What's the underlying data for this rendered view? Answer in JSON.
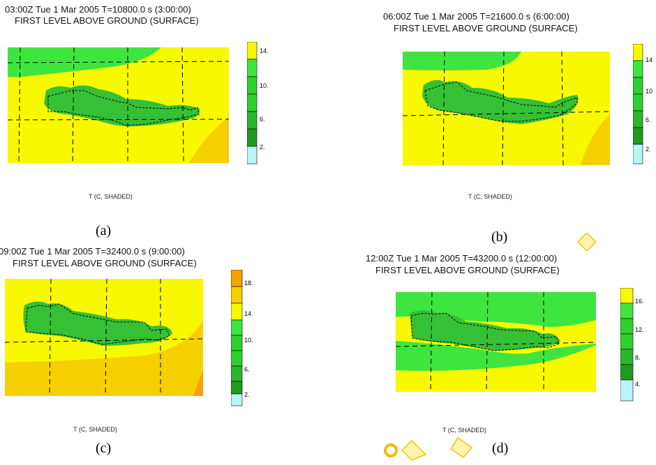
{
  "colors": {
    "cyan": "#b8f4f8",
    "dark_green": "#1f9a1f",
    "green": "#2fcf2f",
    "bright_green": "#3fe53f",
    "yellow": "#f8f800",
    "gold": "#f5cf00",
    "orange": "#f5a300",
    "land_green": "#35c035"
  },
  "panels": [
    {
      "id": "a",
      "title_line1": "03:00Z Tue  1 Mar 2005     T=10800.0 s (3:00:00)",
      "title_line2": "FIRST LEVEL ABOVE GROUND (SURFACE)",
      "field_label": "T (C, SHADED)",
      "caption": "(a)",
      "colorbar": {
        "levels": [
          "cyan",
          "dark_green",
          "green",
          "green",
          "bright_green",
          "yellow"
        ],
        "tick_labels": [
          "14.",
          "10.",
          "6.",
          "2."
        ]
      }
    },
    {
      "id": "b",
      "title_line1": "06:00Z Tue  1 Mar 2005     T=21600.0 s (6:00:00)",
      "title_line2": "FIRST LEVEL ABOVE GROUND (SURFACE)",
      "field_label": "T (C, SHADED)",
      "caption": "(b)",
      "colorbar": {
        "levels": [
          "cyan",
          "dark_green",
          "green",
          "green",
          "bright_green",
          "yellow"
        ],
        "tick_labels": [
          "14",
          "10",
          "6.",
          "2."
        ]
      }
    },
    {
      "id": "c",
      "title_line1": "09:00Z Tue  1 Mar 2005     T=32400.0 s (9:00:00)",
      "title_line2": "FIRST LEVEL ABOVE GROUND (SURFACE)",
      "field_label": "T (C, SHADED)",
      "caption": "(c)",
      "colorbar": {
        "levels": [
          "cyan",
          "dark_green",
          "green",
          "green",
          "bright_green",
          "yellow",
          "gold",
          "orange"
        ],
        "tick_labels": [
          "18.",
          "14.",
          "10.",
          "6.",
          "2."
        ]
      }
    },
    {
      "id": "d",
      "title_line1": "12:00Z Tue  1 Mar 2005     T=43200.0 s (12:00:00)",
      "title_line2": "FIRST LEVEL ABOVE GROUND (SURFACE)",
      "field_label": "T (C, SHADED)",
      "caption": "(d)",
      "colorbar": {
        "levels": [
          "cyan",
          "dark_green",
          "green",
          "green",
          "bright_green",
          "yellow"
        ],
        "tick_labels": [
          "16.",
          "12.",
          "8.",
          "4."
        ]
      }
    }
  ],
  "chart_data": [
    {
      "type": "heatmap",
      "title": "03:00Z Tue  1 Mar 2005     T=10800.0 s (3:00:00)",
      "subtitle": "FIRST LEVEL ABOVE GROUND (SURFACE)",
      "legend_label": "T (C, SHADED)",
      "colorbar_ticks": [
        14,
        10,
        6,
        2
      ],
      "legend": "right"
    },
    {
      "type": "heatmap",
      "title": "06:00Z Tue  1 Mar 2005     T=21600.0 s (6:00:00)",
      "subtitle": "FIRST LEVEL ABOVE GROUND (SURFACE)",
      "legend_label": "T (C, SHADED)",
      "colorbar_ticks": [
        14,
        10,
        6,
        2
      ],
      "legend": "right"
    },
    {
      "type": "heatmap",
      "title": "09:00Z Tue  1 Mar 2005     T=32400.0 s (9:00:00)",
      "subtitle": "FIRST LEVEL ABOVE GROUND (SURFACE)",
      "legend_label": "T (C, SHADED)",
      "colorbar_ticks": [
        18,
        14,
        10,
        6,
        2
      ],
      "legend": "right"
    },
    {
      "type": "heatmap",
      "title": "12:00Z Tue  1 Mar 2005     T=43200.0 s (12:00:00)",
      "subtitle": "FIRST LEVEL ABOVE GROUND (SURFACE)",
      "legend_label": "T (C, SHADED)",
      "colorbar_ticks": [
        16,
        12,
        8,
        4
      ],
      "legend": "right"
    }
  ]
}
